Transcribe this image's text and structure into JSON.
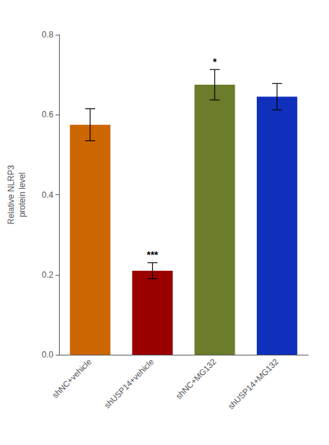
{
  "chart_data": {
    "type": "bar",
    "categories": [
      "shNC+vehicle",
      "shUSP14+vehicle",
      "shNC+MG132",
      "shUSP14+MG132"
    ],
    "values": [
      0.575,
      0.21,
      0.675,
      0.645
    ],
    "errors": [
      0.04,
      0.02,
      0.038,
      0.033
    ],
    "colors": [
      "#CC6600",
      "#990000",
      "#6B7C2A",
      "#1030BB"
    ],
    "ylabel": "Relative NLRP3\nprotein level",
    "ylim": [
      0.0,
      0.8
    ],
    "yticks": [
      {
        "value": 0,
        "label": "0.0"
      },
      0.2,
      0.4,
      0.6,
      0.8
    ],
    "annotations": [
      {
        "category": "shUSP14+vehicle",
        "text": "***"
      },
      {
        "category": "shNC+MG132",
        "text": "*"
      }
    ],
    "grid": false
  }
}
